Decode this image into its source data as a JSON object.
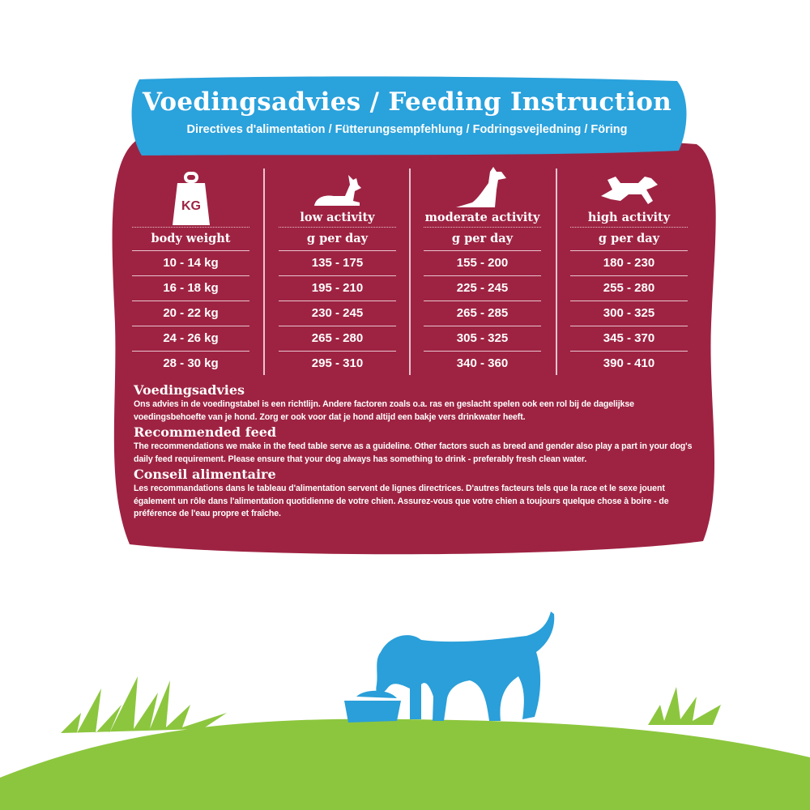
{
  "banner": {
    "title": "Voedingsadvies / Feeding Instruction",
    "subtitle": "Directives d'alimentation / Fütterungsempfehlung / Fodringsvejledning / Föring"
  },
  "colors": {
    "panel": "#9e2342",
    "banner": "#2aa2dc",
    "grass": "#8cc63e",
    "dog": "#2a9fd9"
  },
  "table": {
    "columns": [
      {
        "icon": "weight-kg-icon",
        "icon_text": "KG",
        "activity": "",
        "unit": "body weight",
        "values": [
          "10 - 14 kg",
          "16 - 18 kg",
          "20 - 22 kg",
          "24 - 26 kg",
          "28 - 30 kg"
        ]
      },
      {
        "icon": "lying-dog-icon",
        "activity": "low activity",
        "unit": "g per day",
        "values": [
          "135 - 175",
          "195 - 210",
          "230 - 245",
          "265 - 280",
          "295 - 310"
        ]
      },
      {
        "icon": "sitting-dog-icon",
        "activity": "moderate activity",
        "unit": "g per day",
        "values": [
          "155 - 200",
          "225 - 245",
          "265 - 285",
          "305 - 325",
          "340 - 360"
        ]
      },
      {
        "icon": "running-dog-icon",
        "activity": "high activity",
        "unit": "g per day",
        "values": [
          "180 - 230",
          "255 - 280",
          "300 - 325",
          "345 - 370",
          "390 - 410"
        ]
      }
    ]
  },
  "notes": [
    {
      "heading": "Voedingsadvies",
      "text": "Ons advies in de voedingstabel is een richtlijn. Andere factoren zoals o.a. ras en geslacht spelen ook een rol bij de dagelijkse voedingsbehoefte van je hond. Zorg er ook voor dat je hond altijd een bakje vers drinkwater heeft."
    },
    {
      "heading": "Recommended feed",
      "text": "The recommendations we make in the feed table serve as a guideline. Other factors such as breed and gender also play a part in your dog's daily feed requirement. Please ensure that your dog always has something to drink - preferably fresh clean water."
    },
    {
      "heading": "Conseil alimentaire",
      "text": "Les recommandations dans le tableau d'alimentation servent de lignes directrices. D'autres facteurs tels que la race et le sexe jouent également un rôle dans l'alimentation quotidienne de votre chien. Assurez-vous que votre chien a toujours quelque chose à boire - de préférence de l'eau propre et fraîche."
    }
  ]
}
